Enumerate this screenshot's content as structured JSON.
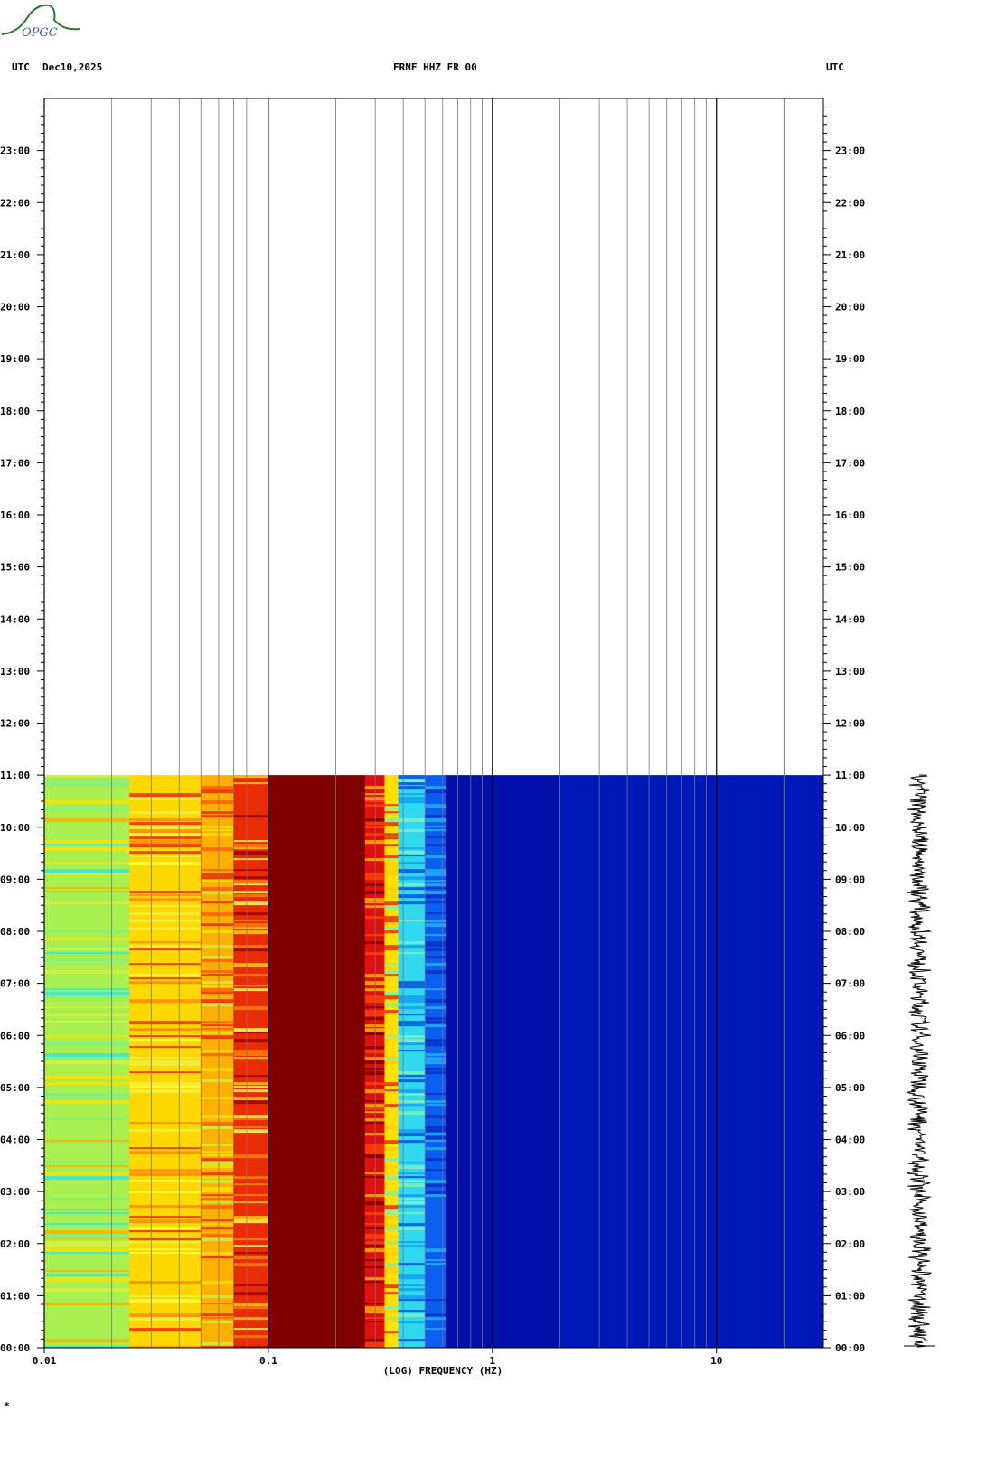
{
  "header": {
    "left_tz": "UTC",
    "date": "Dec10,2025",
    "station": "FRNF HHZ FR 00",
    "right_tz": "UTC"
  },
  "logo": {
    "text": "OPGC",
    "color": "#2a7a2a"
  },
  "chart_data": {
    "type": "heatmap",
    "title": "FRNF HHZ FR 00",
    "xlabel": "(LOG) FREQUENCY (HZ)",
    "x_scale": "log",
    "xlim": [
      0.01,
      30
    ],
    "x_ticks": [
      {
        "value": 0.01,
        "label": "0.01"
      },
      {
        "value": 0.1,
        "label": "0.1"
      },
      {
        "value": 1,
        "label": "1"
      },
      {
        "value": 10,
        "label": "10"
      }
    ],
    "ylim_hours": [
      0,
      24
    ],
    "y_ticks": [
      "00:00",
      "01:00",
      "02:00",
      "03:00",
      "04:00",
      "05:00",
      "06:00",
      "07:00",
      "08:00",
      "09:00",
      "10:00",
      "11:00",
      "12:00",
      "13:00",
      "14:00",
      "15:00",
      "16:00",
      "17:00",
      "18:00",
      "19:00",
      "20:00",
      "21:00",
      "22:00",
      "23:00"
    ],
    "data_end_hour": 11,
    "frequency_bands": [
      {
        "from": 0.01,
        "to": 0.024,
        "level": "green-yellow",
        "color": "#a8f050"
      },
      {
        "from": 0.024,
        "to": 0.05,
        "level": "yellow-orange",
        "color": "#ffd800"
      },
      {
        "from": 0.05,
        "to": 0.07,
        "level": "orange",
        "color": "#ffb000"
      },
      {
        "from": 0.07,
        "to": 0.1,
        "level": "red",
        "color": "#ee2a00"
      },
      {
        "from": 0.1,
        "to": 0.27,
        "level": "dark-red",
        "color": "#800000"
      },
      {
        "from": 0.27,
        "to": 0.33,
        "level": "red",
        "color": "#e01010"
      },
      {
        "from": 0.33,
        "to": 0.38,
        "level": "yellow",
        "color": "#ffe000"
      },
      {
        "from": 0.38,
        "to": 0.5,
        "level": "cyan",
        "color": "#30d8f0"
      },
      {
        "from": 0.5,
        "to": 0.62,
        "level": "blue",
        "color": "#0a5ef0"
      },
      {
        "from": 0.62,
        "to": 2.0,
        "level": "navy",
        "color": "#0010a8"
      },
      {
        "from": 2.0,
        "to": 30,
        "level": "blue",
        "color": "#0018b8"
      }
    ],
    "waveform_color": "#000000",
    "grid": true
  }
}
